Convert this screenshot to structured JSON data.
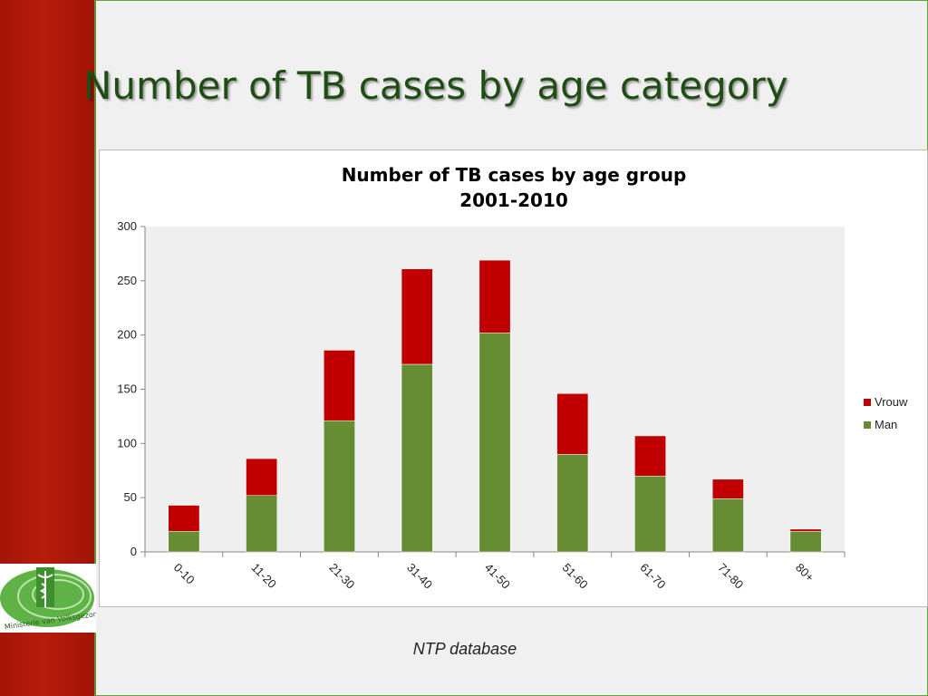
{
  "slide": {
    "title": "Number of TB cases by age category",
    "source": "NTP database",
    "logo_text": "Ministerie van Volksgezondheid"
  },
  "colors": {
    "sidebar": "#b11a0b",
    "title": "#1f4d14",
    "man": "#668c34",
    "vrouw": "#c00000"
  },
  "chart_data": {
    "type": "bar",
    "stacked": true,
    "title": "Number of TB cases by age group",
    "subtitle": "2001-2010",
    "categories": [
      "0-10",
      "11-20",
      "21-30",
      "31-40",
      "41-50",
      "51-60",
      "61-70",
      "71-80",
      "80+"
    ],
    "series": [
      {
        "name": "Man",
        "color": "#668c34",
        "values": [
          19,
          52,
          121,
          173,
          202,
          90,
          70,
          49,
          19
        ]
      },
      {
        "name": "Vrouw",
        "color": "#c00000",
        "values": [
          24,
          34,
          65,
          88,
          67,
          56,
          37,
          18,
          2
        ]
      }
    ],
    "ylim": [
      0,
      300
    ],
    "yticks": [
      0,
      50,
      100,
      150,
      200,
      250,
      300
    ],
    "legend_position": "right",
    "grid": false
  }
}
